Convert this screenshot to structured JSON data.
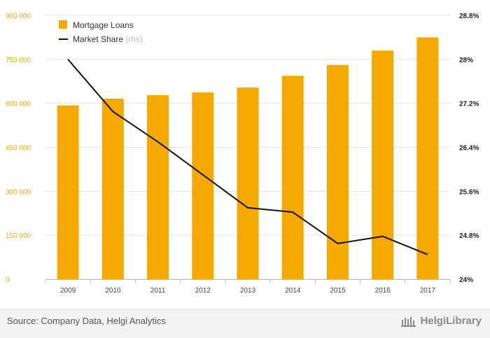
{
  "chart_data": {
    "type": "bar",
    "categories": [
      "2009",
      "2010",
      "2011",
      "2012",
      "2013",
      "2014",
      "2015",
      "2016",
      "2017"
    ],
    "series": [
      {
        "name": "Mortgage Loans",
        "type": "bar",
        "axis": "left",
        "values": [
          593000,
          616000,
          628000,
          637000,
          654000,
          694000,
          731000,
          780000,
          825000
        ]
      },
      {
        "name": "Market Share",
        "legend_note": "(rhs)",
        "type": "line",
        "axis": "right",
        "values": [
          28.0,
          27.05,
          26.5,
          25.9,
          25.3,
          25.22,
          24.65,
          24.78,
          24.45
        ]
      }
    ],
    "y_left": {
      "ylim": [
        0,
        900000
      ],
      "ticks": [
        0,
        150000,
        300000,
        450000,
        600000,
        750000,
        900000
      ],
      "tick_labels": [
        "0",
        "150 000",
        "300 000",
        "450 000",
        "600 000",
        "750 000",
        "900 000"
      ]
    },
    "y_right": {
      "ylim": [
        24,
        28.8
      ],
      "ticks": [
        24,
        24.8,
        25.6,
        26.4,
        27.2,
        28,
        28.8
      ],
      "tick_labels": [
        "24%",
        "24.8%",
        "25.6%",
        "26.4%",
        "27.2%",
        "28%",
        "28.8%"
      ]
    },
    "grid": true,
    "legend_position": "top-left",
    "colors": {
      "bar": "#f5a800",
      "line": "#111111",
      "grid": "#e3e3e3",
      "left_ticks": "#f5a800"
    }
  },
  "footer": {
    "source": "Source: Company Data, Helgi Analytics",
    "brand": "HelgiLibrary"
  }
}
